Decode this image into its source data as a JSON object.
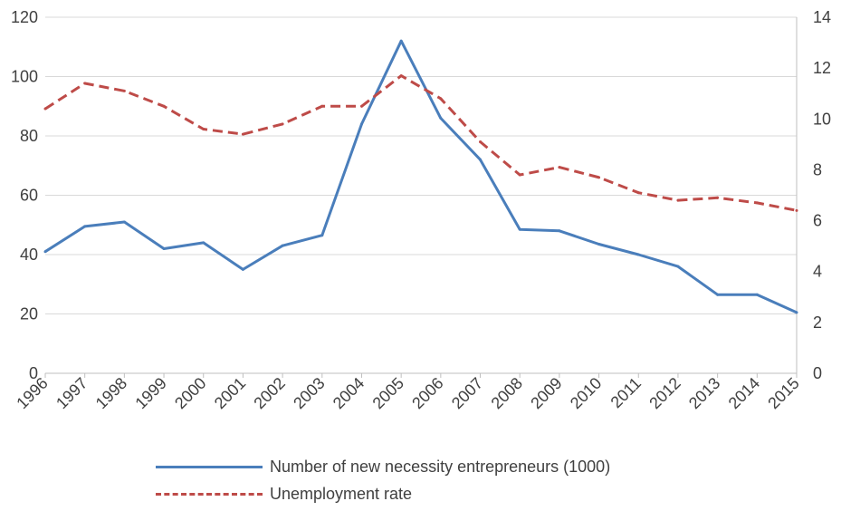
{
  "chart_data": {
    "type": "line",
    "x": [
      "1996",
      "1997",
      "1998",
      "1999",
      "2000",
      "2001",
      "2002",
      "2003",
      "2004",
      "2005",
      "2006",
      "2007",
      "2008",
      "2009",
      "2010",
      "2011",
      "2012",
      "2013",
      "2014",
      "2015"
    ],
    "series": [
      {
        "name": "Number of new necessity entrepreneurs (1000)",
        "axis": "left",
        "color": "#4a7ebb",
        "style": "solid",
        "values": [
          41,
          49.5,
          51,
          42,
          44,
          35,
          43,
          46.5,
          84,
          112,
          86,
          72,
          48.5,
          48,
          43.5,
          40,
          36,
          26.5,
          26.5,
          20.5
        ]
      },
      {
        "name": "Unemployment rate",
        "axis": "right",
        "color": "#be4b48",
        "style": "dashed",
        "values": [
          10.4,
          11.4,
          11.1,
          10.5,
          9.6,
          9.4,
          9.8,
          10.5,
          10.5,
          11.7,
          10.8,
          9.1,
          7.8,
          8.1,
          7.7,
          7.1,
          6.8,
          6.9,
          6.7,
          6.4
        ]
      }
    ],
    "y_left": {
      "ticks": [
        "0",
        "20",
        "40",
        "60",
        "80",
        "100",
        "120"
      ],
      "lim": [
        0,
        120
      ]
    },
    "y_right": {
      "ticks": [
        "0",
        "2",
        "4",
        "6",
        "8",
        "10",
        "12",
        "14"
      ],
      "lim": [
        0,
        14
      ]
    },
    "grid": true,
    "legend_position": "bottom"
  }
}
